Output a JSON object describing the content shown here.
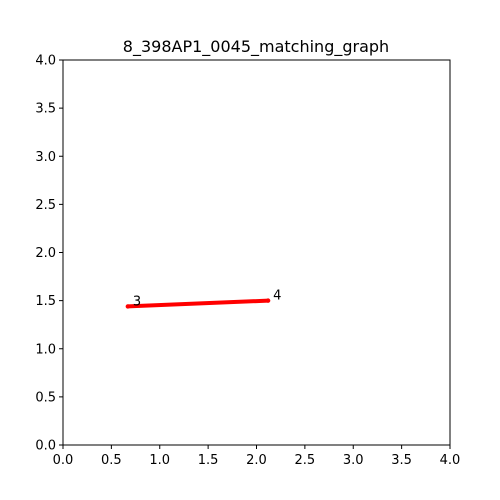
{
  "chart_data": {
    "type": "line",
    "title": "8_398AP1_0045_matching_graph",
    "xlabel": "",
    "ylabel": "",
    "xlim": [
      0.0,
      4.0
    ],
    "ylim": [
      0.0,
      4.0
    ],
    "x_ticks": [
      "0.0",
      "0.5",
      "1.0",
      "1.5",
      "2.0",
      "2.5",
      "3.0",
      "3.5",
      "4.0"
    ],
    "y_ticks": [
      "0.0",
      "0.5",
      "1.0",
      "1.5",
      "2.0",
      "2.5",
      "3.0",
      "3.5",
      "4.0"
    ],
    "grid": false,
    "nodes": [
      {
        "label": "3",
        "x": 0.67,
        "y": 1.44
      },
      {
        "label": "4",
        "x": 2.12,
        "y": 1.5
      }
    ],
    "edges": [
      {
        "from": "3",
        "to": "4",
        "color": "#ff0000"
      }
    ],
    "node_color": "#ff0000"
  }
}
